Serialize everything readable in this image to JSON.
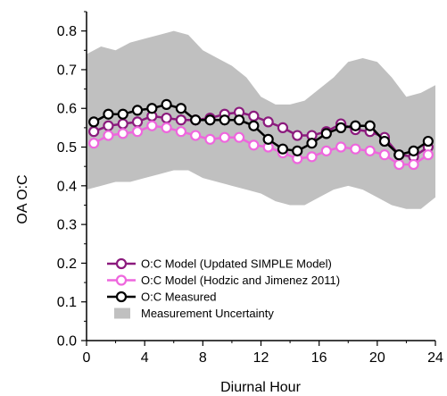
{
  "chart_data": {
    "type": "line",
    "xlabel": "Diurnal Hour",
    "ylabel": "OA O:C",
    "xlim": [
      0,
      24
    ],
    "ylim": [
      0.0,
      0.85
    ],
    "xticks": [
      "0",
      "4",
      "8",
      "12",
      "16",
      "20",
      "24"
    ],
    "yticks": [
      "0.0",
      "0.1",
      "0.2",
      "0.3",
      "0.4",
      "0.5",
      "0.6",
      "0.7",
      "0.8"
    ],
    "grid": false,
    "legend_position": "bottom-left",
    "x": [
      0.5,
      1.5,
      2.5,
      3.5,
      4.5,
      5.5,
      6.5,
      7.5,
      8.5,
      9.5,
      10.5,
      11.5,
      12.5,
      13.5,
      14.5,
      15.5,
      16.5,
      17.5,
      18.5,
      19.5,
      20.5,
      21.5,
      22.5,
      23.5
    ],
    "uncertainty": {
      "name": "Measurement Uncertainty",
      "color": "#c0c0c0",
      "x": [
        0,
        1,
        2,
        3,
        4,
        5,
        6,
        7,
        8,
        9,
        10,
        11,
        12,
        13,
        14,
        15,
        16,
        17,
        18,
        19,
        20,
        21,
        22,
        23,
        24
      ],
      "upper": [
        0.74,
        0.76,
        0.75,
        0.77,
        0.78,
        0.79,
        0.8,
        0.79,
        0.75,
        0.73,
        0.71,
        0.68,
        0.63,
        0.61,
        0.61,
        0.62,
        0.65,
        0.68,
        0.72,
        0.73,
        0.72,
        0.68,
        0.63,
        0.64,
        0.66
      ],
      "lower": [
        0.39,
        0.4,
        0.41,
        0.41,
        0.42,
        0.43,
        0.44,
        0.44,
        0.42,
        0.41,
        0.4,
        0.39,
        0.38,
        0.36,
        0.35,
        0.35,
        0.37,
        0.39,
        0.4,
        0.39,
        0.37,
        0.35,
        0.34,
        0.34,
        0.37
      ]
    },
    "series": [
      {
        "name": "O:C Model (Updated SIMPLE Model)",
        "color": "#8b1a7d",
        "values": [
          0.54,
          0.555,
          0.56,
          0.565,
          0.58,
          0.575,
          0.57,
          0.57,
          0.575,
          0.585,
          0.59,
          0.58,
          0.565,
          0.55,
          0.53,
          0.53,
          0.54,
          0.56,
          0.545,
          0.54,
          0.525,
          0.48,
          0.475,
          0.5
        ]
      },
      {
        "name": "O:C Model (Hodzic and Jimenez 2011)",
        "color": "#ee66dd",
        "values": [
          0.51,
          0.53,
          0.535,
          0.54,
          0.555,
          0.55,
          0.54,
          0.53,
          0.52,
          0.525,
          0.525,
          0.505,
          0.5,
          0.485,
          0.47,
          0.475,
          0.49,
          0.5,
          0.495,
          0.49,
          0.48,
          0.455,
          0.455,
          0.48
        ]
      },
      {
        "name": "O:C Measured",
        "color": "#000000",
        "values": [
          0.565,
          0.585,
          0.585,
          0.595,
          0.6,
          0.61,
          0.6,
          0.57,
          0.57,
          0.57,
          0.57,
          0.555,
          0.52,
          0.495,
          0.49,
          0.51,
          0.535,
          0.55,
          0.555,
          0.555,
          0.515,
          0.48,
          0.49,
          0.515
        ]
      }
    ]
  }
}
